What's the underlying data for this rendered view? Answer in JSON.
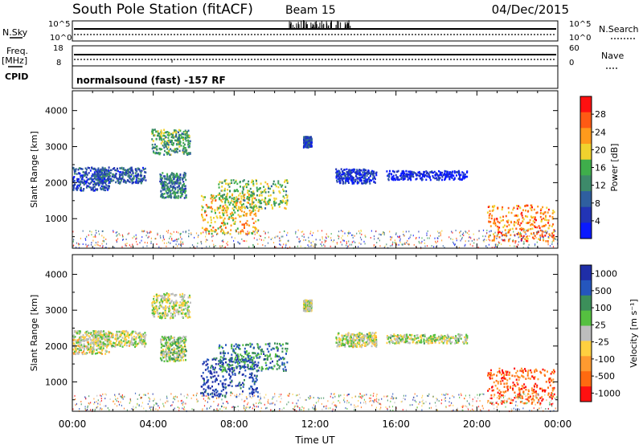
{
  "header": {
    "station": "South Pole Station (fitACF)",
    "beam": "Beam 15",
    "date": "04/Dec/2015"
  },
  "left_labels": {
    "nsky": "N.Sky",
    "freq": "Freq.",
    "freq_unit": "[MHz]",
    "cpid": "CPID",
    "nsky_ticks": [
      "10^5",
      "10^0"
    ],
    "freq_ticks": [
      "18",
      "8"
    ]
  },
  "right_labels": {
    "nsearch": "N.Search",
    "nave": "Nave",
    "nsearch_ticks": [
      "10^5",
      "10^0"
    ],
    "nave_ticks": [
      "60",
      "0"
    ]
  },
  "cpid_text": "normalsound (fast) -157 RF",
  "x_axis": {
    "label": "Time UT",
    "ticks": [
      "00:00",
      "04:00",
      "08:00",
      "12:00",
      "16:00",
      "20:00",
      "00:00"
    ]
  },
  "colors": {
    "power": [
      "#0a1aff",
      "#2234b5",
      "#2f5f9f",
      "#3d8a6a",
      "#3fae4b",
      "#f0d22e",
      "#ff9a1c",
      "#ff5a14",
      "#ff1010"
    ],
    "velocity": [
      "#1f2ea8",
      "#2556bd",
      "#3c8f5a",
      "#55c040",
      "#bdbdbd",
      "#ffd040",
      "#ff9a30",
      "#ff6a10",
      "#ff1010"
    ]
  },
  "chart_data": [
    {
      "type": "heatmap",
      "title": "",
      "xlabel": "Time UT",
      "ylabel": "Slant Range [km]",
      "xlim": [
        0,
        24
      ],
      "ylim": [
        180,
        4550
      ],
      "yticks": [
        1000,
        2000,
        3000,
        4000
      ],
      "colorbar": {
        "label": "Power [dB]",
        "ticks": [
          "4",
          "8",
          "12",
          "16",
          "20",
          "24",
          "28"
        ],
        "range": [
          0,
          32
        ]
      },
      "regions": [
        {
          "t0": 3.9,
          "t1": 5.8,
          "r0": 2800,
          "r1": 3500,
          "level": 0.45
        },
        {
          "t0": 0.0,
          "t1": 1.8,
          "r0": 1800,
          "r1": 2450,
          "level": 0.2
        },
        {
          "t0": 1.0,
          "t1": 3.6,
          "r0": 2000,
          "r1": 2450,
          "level": 0.25
        },
        {
          "t0": 4.3,
          "t1": 5.6,
          "r0": 1600,
          "r1": 2300,
          "level": 0.35
        },
        {
          "t0": 6.3,
          "t1": 9.2,
          "r0": 600,
          "r1": 1700,
          "level": 0.65
        },
        {
          "t0": 7.2,
          "t1": 10.6,
          "r0": 1300,
          "r1": 2100,
          "level": 0.5
        },
        {
          "t0": 11.4,
          "t1": 11.8,
          "r0": 3000,
          "r1": 3300,
          "level": 0.2
        },
        {
          "t0": 13.0,
          "t1": 15.0,
          "r0": 2000,
          "r1": 2400,
          "level": 0.15
        },
        {
          "t0": 15.5,
          "t1": 19.5,
          "r0": 2100,
          "r1": 2350,
          "level": 0.1
        },
        {
          "t0": 20.5,
          "t1": 23.8,
          "r0": 400,
          "r1": 1400,
          "level": 0.75
        }
      ]
    },
    {
      "type": "heatmap",
      "title": "",
      "xlabel": "Time UT",
      "ylabel": "Slant Range [km]",
      "xlim": [
        0,
        24
      ],
      "ylim": [
        180,
        4550
      ],
      "yticks": [
        1000,
        2000,
        3000,
        4000
      ],
      "colorbar": {
        "label": "Velocity [m s⁻¹]",
        "ticks": [
          "1000",
          "500",
          "100",
          "25",
          "-25",
          "-100",
          "-500",
          "-1000"
        ],
        "range": [
          -1000,
          1000
        ]
      },
      "regions": [
        {
          "t0": 3.9,
          "t1": 5.8,
          "r0": 2800,
          "r1": 3500,
          "level": 0.5
        },
        {
          "t0": 0.0,
          "t1": 1.8,
          "r0": 1800,
          "r1": 2450,
          "level": 0.55
        },
        {
          "t0": 1.0,
          "t1": 3.6,
          "r0": 2000,
          "r1": 2450,
          "level": 0.5
        },
        {
          "t0": 4.3,
          "t1": 5.6,
          "r0": 1600,
          "r1": 2300,
          "level": 0.45
        },
        {
          "t0": 6.3,
          "t1": 9.2,
          "r0": 600,
          "r1": 1700,
          "level": 0.1
        },
        {
          "t0": 7.2,
          "t1": 10.6,
          "r0": 1300,
          "r1": 2100,
          "level": 0.25
        },
        {
          "t0": 11.4,
          "t1": 11.8,
          "r0": 3000,
          "r1": 3300,
          "level": 0.5
        },
        {
          "t0": 13.0,
          "t1": 15.0,
          "r0": 2000,
          "r1": 2400,
          "level": 0.5
        },
        {
          "t0": 15.5,
          "t1": 19.5,
          "r0": 2100,
          "r1": 2350,
          "level": 0.5
        },
        {
          "t0": 20.5,
          "t1": 23.8,
          "r0": 400,
          "r1": 1400,
          "level": 0.85
        }
      ]
    }
  ]
}
